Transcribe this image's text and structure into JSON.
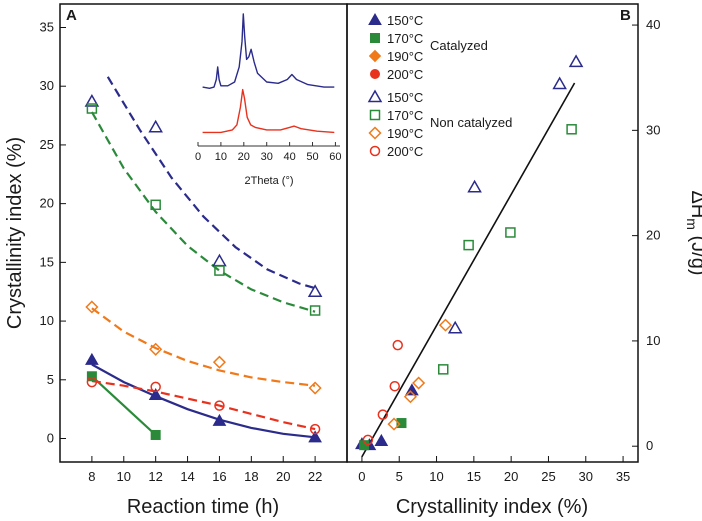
{
  "chart_data": [
    {
      "panel": "A",
      "type": "scatter",
      "xlabel": "Reaction time (h)",
      "ylabel": "Crystallinity index (%)",
      "xlim": [
        6,
        24
      ],
      "ylim": [
        -2,
        37
      ],
      "xticks": [
        8,
        10,
        12,
        14,
        16,
        18,
        20,
        22
      ],
      "yticks": [
        0,
        5,
        10,
        15,
        20,
        25,
        30,
        35
      ],
      "series": [
        {
          "name": "150°C catalyzed",
          "color": "#2b2b8c",
          "marker": "triangle",
          "filled": true,
          "x": [
            8,
            12,
            16,
            22
          ],
          "y": [
            6.7,
            3.7,
            1.5,
            0.1
          ],
          "fit": {
            "style": "solid",
            "points": [
              [
                8,
                6.3
              ],
              [
                10,
                4.8
              ],
              [
                12,
                3.6
              ],
              [
                14,
                2.5
              ],
              [
                16,
                1.6
              ],
              [
                18,
                0.9
              ],
              [
                20,
                0.4
              ],
              [
                22,
                0.1
              ]
            ]
          }
        },
        {
          "name": "170°C catalyzed",
          "color": "#2a8a3a",
          "marker": "square",
          "filled": true,
          "x": [
            8,
            12
          ],
          "y": [
            5.3,
            0.3
          ],
          "fit": {
            "style": "solid",
            "points": [
              [
                8,
                5.3
              ],
              [
                12,
                0.3
              ]
            ]
          }
        },
        {
          "name": "150°C non catalyzed",
          "color": "#2b2b8c",
          "marker": "triangle",
          "filled": false,
          "x": [
            8,
            12,
            16,
            22
          ],
          "y": [
            28.7,
            26.5,
            15.1,
            12.5
          ],
          "fit": {
            "style": "dashed",
            "points": [
              [
                9,
                30.8
              ],
              [
                11,
                26.3
              ],
              [
                13,
                22.2
              ],
              [
                15,
                18.9
              ],
              [
                17,
                16.3
              ],
              [
                19,
                14.4
              ],
              [
                21,
                13.2
              ],
              [
                22,
                12.8
              ]
            ]
          }
        },
        {
          "name": "170°C non catalyzed",
          "color": "#2a8a3a",
          "marker": "square",
          "filled": false,
          "x": [
            8,
            12,
            16,
            22
          ],
          "y": [
            28.1,
            19.9,
            14.3,
            10.9
          ],
          "fit": {
            "style": "dashed",
            "points": [
              [
                8,
                27.8
              ],
              [
                10,
                23.0
              ],
              [
                12,
                19.3
              ],
              [
                14,
                16.4
              ],
              [
                16,
                14.3
              ],
              [
                18,
                12.7
              ],
              [
                20,
                11.6
              ],
              [
                22,
                10.8
              ]
            ]
          }
        },
        {
          "name": "190°C non catalyzed",
          "color": "#f07a1a",
          "marker": "diamond",
          "filled": false,
          "x": [
            8,
            12,
            16,
            22
          ],
          "y": [
            11.2,
            7.6,
            6.5,
            4.3
          ],
          "fit": {
            "style": "dashed",
            "points": [
              [
                8,
                11.1
              ],
              [
                10,
                9.1
              ],
              [
                12,
                7.7
              ],
              [
                14,
                6.6
              ],
              [
                16,
                5.8
              ],
              [
                18,
                5.2
              ],
              [
                20,
                4.8
              ],
              [
                22,
                4.5
              ]
            ]
          }
        },
        {
          "name": "200°C non catalyzed",
          "color": "#e8321e",
          "marker": "circle",
          "filled": false,
          "x": [
            8,
            12,
            16,
            22
          ],
          "y": [
            4.8,
            4.4,
            2.8,
            0.8
          ],
          "fit": {
            "style": "dashed",
            "points": [
              [
                8,
                4.9
              ],
              [
                10,
                4.5
              ],
              [
                12,
                4.0
              ],
              [
                14,
                3.4
              ],
              [
                16,
                2.8
              ],
              [
                18,
                2.1
              ],
              [
                20,
                1.4
              ],
              [
                22,
                0.8
              ]
            ]
          }
        }
      ],
      "inset": {
        "type": "line",
        "xlabel": "2Theta (°)",
        "xlim": [
          0,
          62
        ],
        "xticks": [
          0,
          10,
          20,
          30,
          40,
          50,
          60
        ],
        "series": [
          {
            "name": "upper pattern",
            "color": "#2b2b8c",
            "points": [
              [
                2,
                0.42
              ],
              [
                5,
                0.41
              ],
              [
                7,
                0.42
              ],
              [
                8,
                0.48
              ],
              [
                8.6,
                0.58
              ],
              [
                9.2,
                0.48
              ],
              [
                10,
                0.43
              ],
              [
                13,
                0.43
              ],
              [
                16,
                0.46
              ],
              [
                18,
                0.58
              ],
              [
                19.2,
                0.78
              ],
              [
                19.8,
                1.0
              ],
              [
                20.4,
                0.82
              ],
              [
                21.2,
                0.64
              ],
              [
                22.2,
                0.66
              ],
              [
                23.2,
                0.72
              ],
              [
                24.5,
                0.62
              ],
              [
                26,
                0.53
              ],
              [
                30,
                0.46
              ],
              [
                35,
                0.45
              ],
              [
                39,
                0.48
              ],
              [
                41,
                0.52
              ],
              [
                43,
                0.48
              ],
              [
                48,
                0.44
              ],
              [
                55,
                0.42
              ],
              [
                59.5,
                0.42
              ]
            ]
          },
          {
            "name": "lower pattern",
            "color": "#e8321e",
            "points": [
              [
                2,
                0.06
              ],
              [
                10,
                0.06
              ],
              [
                15,
                0.08
              ],
              [
                17,
                0.12
              ],
              [
                18.5,
                0.26
              ],
              [
                19.5,
                0.4
              ],
              [
                20.3,
                0.33
              ],
              [
                21.5,
                0.18
              ],
              [
                23,
                0.12
              ],
              [
                25,
                0.1
              ],
              [
                30,
                0.08
              ],
              [
                36,
                0.08
              ],
              [
                40,
                0.1
              ],
              [
                42,
                0.11
              ],
              [
                45,
                0.09
              ],
              [
                52,
                0.07
              ],
              [
                59.5,
                0.06
              ]
            ]
          }
        ]
      }
    },
    {
      "panel": "B",
      "type": "scatter",
      "xlabel": "Crystallinity index (%)",
      "ylabel": "ΔH_m (J/g)",
      "ylabel_main": "ΔH",
      "ylabel_sub": "m",
      "ylabel_units": " (J/g)",
      "xlim": [
        -2,
        37
      ],
      "ylim": [
        -1.5,
        42
      ],
      "xticks": [
        0,
        5,
        10,
        15,
        20,
        25,
        30,
        35
      ],
      "yticks": [
        0,
        10,
        20,
        30,
        40
      ],
      "fit_line": {
        "color": "#111111",
        "points": [
          [
            0,
            -1
          ],
          [
            28.5,
            34.5
          ]
        ]
      },
      "series": [
        {
          "name": "150°C catalyzed",
          "color": "#2b2b8c",
          "marker": "triangle",
          "filled": true,
          "x": [
            0,
            1,
            2.6,
            6.7
          ],
          "y": [
            0.2,
            0.1,
            0.5,
            5.3
          ]
        },
        {
          "name": "170°C catalyzed",
          "color": "#2a8a3a",
          "marker": "square",
          "filled": true,
          "x": [
            0.3,
            5.3
          ],
          "y": [
            0.1,
            2.2
          ]
        },
        {
          "name": "190°C catalyzed",
          "color": "#f07a1a",
          "marker": "diamond",
          "filled": true,
          "x": [],
          "y": []
        },
        {
          "name": "200°C catalyzed",
          "color": "#e8321e",
          "marker": "circle",
          "filled": true,
          "x": [],
          "y": []
        },
        {
          "name": "150°C non catalyzed",
          "color": "#2b2b8c",
          "marker": "triangle",
          "filled": false,
          "x": [
            12.5,
            15.1,
            26.5,
            28.7
          ],
          "y": [
            11.2,
            24.6,
            34.4,
            36.5
          ]
        },
        {
          "name": "170°C non catalyzed",
          "color": "#2a8a3a",
          "marker": "square",
          "filled": false,
          "x": [
            10.9,
            14.3,
            19.9,
            28.1
          ],
          "y": [
            7.3,
            19.1,
            20.3,
            30.1
          ]
        },
        {
          "name": "190°C non catalyzed",
          "color": "#f07a1a",
          "marker": "diamond",
          "filled": false,
          "x": [
            4.3,
            6.5,
            7.6,
            11.2
          ],
          "y": [
            2.1,
            4.7,
            6.0,
            11.5
          ]
        },
        {
          "name": "200°C non catalyzed",
          "color": "#e8321e",
          "marker": "circle",
          "filled": false,
          "x": [
            0.8,
            2.8,
            4.4,
            4.8
          ],
          "y": [
            0.6,
            3.0,
            5.7,
            9.6
          ]
        }
      ],
      "legend": {
        "location": "top-left",
        "catalyzed_label": "Catalyzed",
        "non_catalyzed_label": "Non catalyzed",
        "entries": [
          {
            "label": "150°C",
            "series": 0
          },
          {
            "label": "170°C",
            "series": 1
          },
          {
            "label": "190°C",
            "series": 2
          },
          {
            "label": "200°C",
            "series": 3
          },
          {
            "label": "150°C",
            "series": 4
          },
          {
            "label": "170°C",
            "series": 5
          },
          {
            "label": "190°C",
            "series": 6
          },
          {
            "label": "200°C",
            "series": 7
          }
        ]
      }
    }
  ]
}
